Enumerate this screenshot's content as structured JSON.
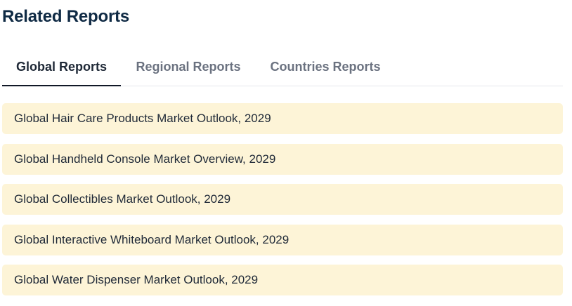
{
  "section": {
    "title": "Related Reports"
  },
  "tabs": [
    {
      "label": "Global Reports",
      "active": true
    },
    {
      "label": "Regional Reports",
      "active": false
    },
    {
      "label": "Countries Reports",
      "active": false
    }
  ],
  "reports": [
    {
      "title": "Global Hair Care Products Market Outlook, 2029"
    },
    {
      "title": "Global Handheld Console Market Overview, 2029"
    },
    {
      "title": "Global Collectibles Market Outlook, 2029"
    },
    {
      "title": "Global Interactive Whiteboard Market Outlook, 2029"
    },
    {
      "title": "Global Water Dispenser Market Outlook, 2029"
    }
  ],
  "colors": {
    "title": "#0f2a44",
    "tab_active": "#1f2937",
    "tab_inactive": "#6b7280",
    "item_background": "#fdf4d7"
  }
}
